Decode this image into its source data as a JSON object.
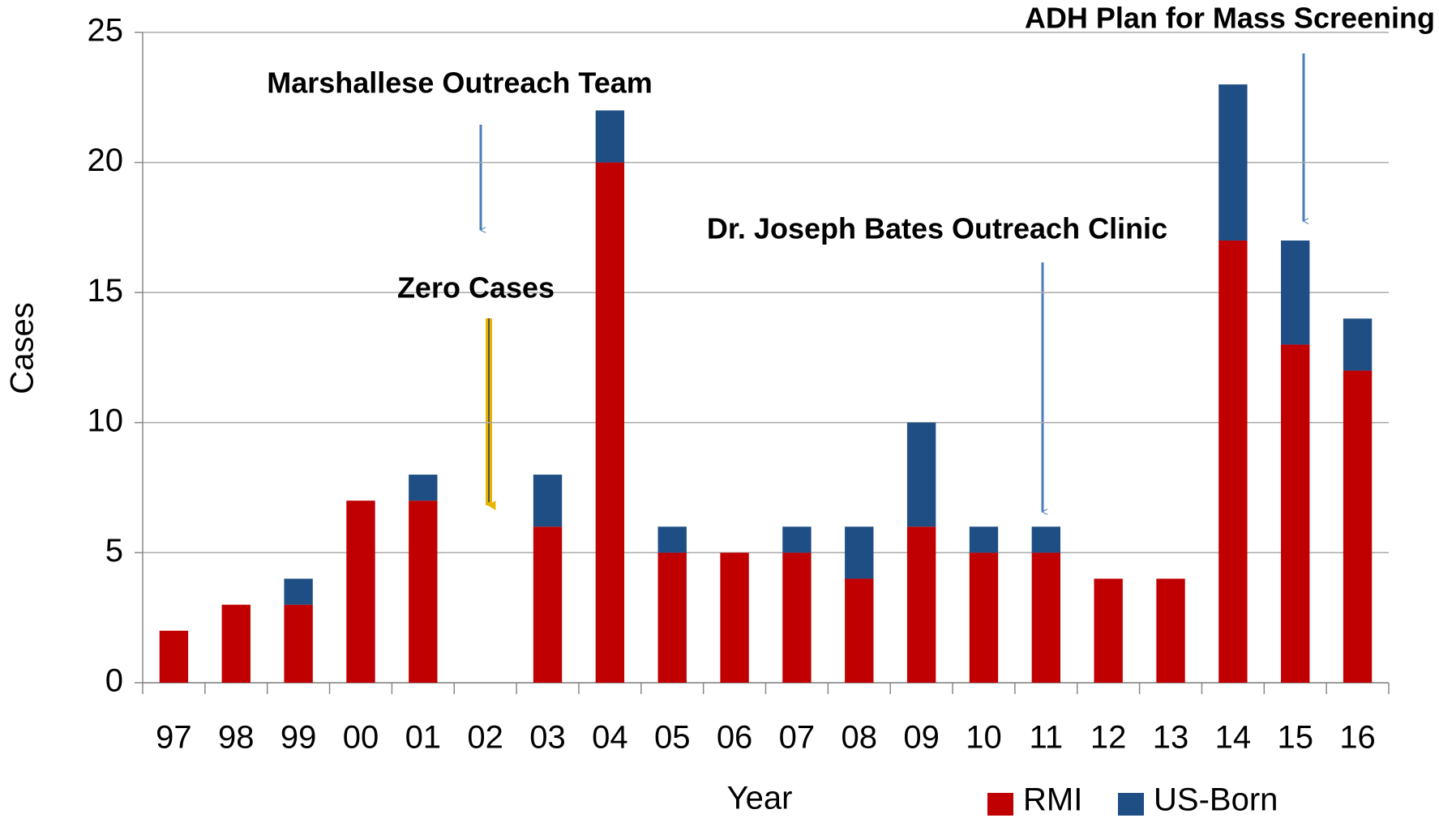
{
  "chart_data": {
    "type": "bar",
    "stacked": true,
    "xlabel": "Year",
    "ylabel": "Cases",
    "categories": [
      "97",
      "98",
      "99",
      "00",
      "01",
      "02",
      "03",
      "04",
      "05",
      "06",
      "07",
      "08",
      "09",
      "10",
      "11",
      "12",
      "13",
      "14",
      "15",
      "16"
    ],
    "series": [
      {
        "name": "RMI",
        "color": "#c00000",
        "values": [
          2,
          3,
          3,
          7,
          7,
          0,
          6,
          20,
          5,
          5,
          5,
          4,
          6,
          5,
          5,
          4,
          4,
          17,
          13,
          12
        ]
      },
      {
        "name": "US-Born",
        "color": "#1f4e85",
        "values": [
          0,
          0,
          1,
          0,
          1,
          0,
          2,
          2,
          1,
          0,
          1,
          2,
          4,
          1,
          1,
          0,
          0,
          6,
          4,
          2
        ]
      }
    ],
    "ylim": [
      0,
      25
    ],
    "yticks": [
      0,
      5,
      10,
      15,
      20,
      25
    ],
    "grid": true,
    "annotations": [
      "Marshallese Outreach Team",
      "Zero Cases",
      "Dr. Joseph Bates Outreach Clinic",
      "ADH Plan for Mass Screening"
    ],
    "legend": "bottom-right"
  }
}
